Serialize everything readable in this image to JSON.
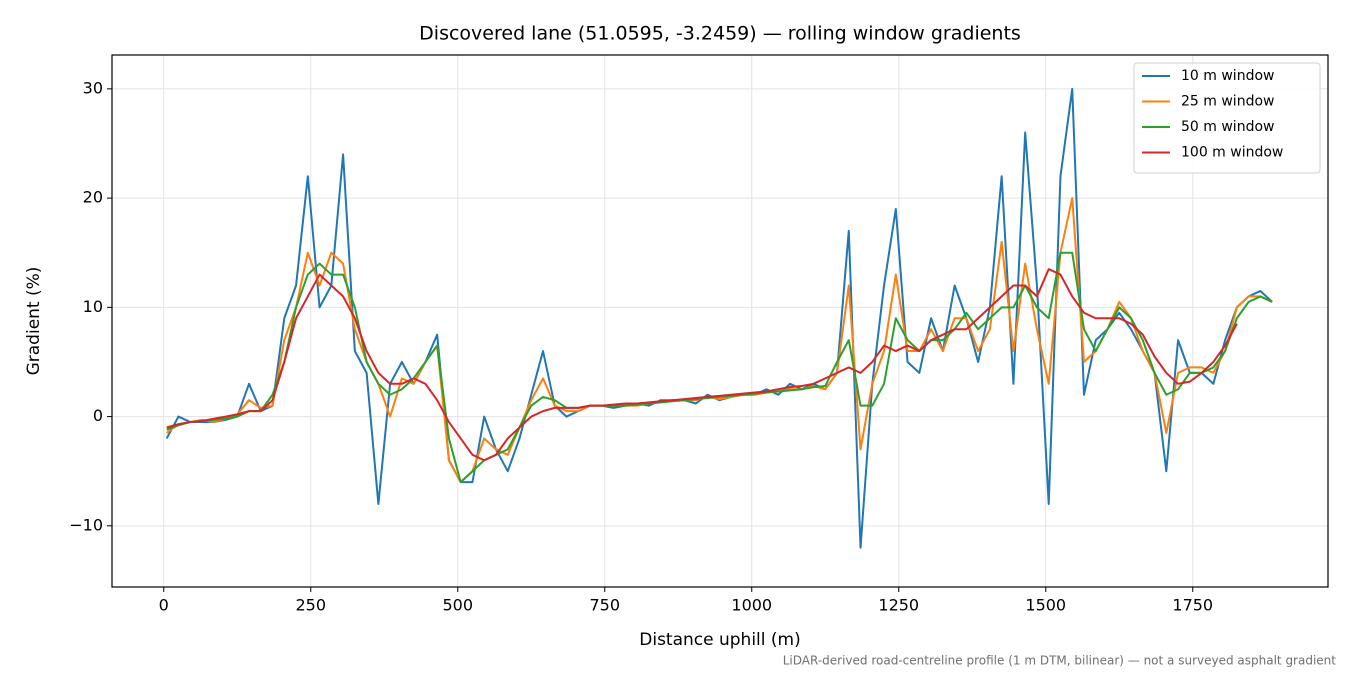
{
  "chart_data": {
    "type": "line",
    "title": "Discovered lane (51.0595, -3.2459) — rolling window gradients",
    "xlabel": "Distance uphill (m)",
    "ylabel": "Gradient (%)",
    "footnote": "LiDAR-derived road-centreline profile (1 m DTM, bilinear) — not a surveyed asphalt gradient",
    "x": [
      5,
      25,
      45,
      65,
      85,
      105,
      125,
      145,
      165,
      185,
      205,
      225,
      245,
      265,
      285,
      305,
      325,
      345,
      365,
      385,
      405,
      425,
      445,
      465,
      485,
      505,
      525,
      545,
      565,
      585,
      605,
      625,
      645,
      665,
      685,
      705,
      725,
      745,
      765,
      785,
      805,
      825,
      845,
      865,
      885,
      905,
      925,
      945,
      965,
      985,
      1005,
      1025,
      1045,
      1065,
      1085,
      1105,
      1125,
      1145,
      1165,
      1185,
      1205,
      1225,
      1245,
      1265,
      1285,
      1305,
      1325,
      1345,
      1365,
      1385,
      1405,
      1425,
      1445,
      1465,
      1485,
      1505,
      1525,
      1545,
      1565,
      1585,
      1605,
      1625,
      1645,
      1665,
      1685,
      1705,
      1725,
      1745,
      1765,
      1785,
      1805,
      1825,
      1845,
      1865,
      1885
    ],
    "series": [
      {
        "name": "10 m window",
        "color": "#1f77b4",
        "values": [
          -2,
          0,
          -0.5,
          -0.5,
          -0.5,
          -0.3,
          0,
          3,
          0.5,
          1,
          9,
          12,
          22,
          10,
          12,
          24,
          6,
          4,
          -8,
          3,
          5,
          3,
          5,
          7.5,
          -4,
          -6,
          -6,
          0,
          -3,
          -5,
          -2,
          2,
          6,
          1,
          0,
          0.5,
          1,
          1,
          0.8,
          1,
          1.2,
          1,
          1.5,
          1.5,
          1.5,
          1.2,
          2,
          1.5,
          1.8,
          2,
          2,
          2.5,
          2,
          3,
          2.5,
          3,
          2.5,
          4,
          17,
          -12,
          3,
          12,
          19,
          5,
          4,
          9,
          6,
          12,
          9,
          5,
          10,
          22,
          3,
          26,
          12,
          -8,
          22,
          30,
          2,
          7,
          8,
          9.5,
          8,
          6,
          4,
          -5,
          7,
          4,
          4,
          3,
          7,
          10,
          11,
          11.5,
          10.5
        ]
      },
      {
        "name": "25 m window",
        "color": "#ff7f0e",
        "values": [
          -1.5,
          -0.7,
          -0.5,
          -0.3,
          -0.5,
          -0.2,
          0.2,
          1.5,
          0.8,
          1,
          7,
          10,
          15,
          12,
          15,
          14,
          8,
          5,
          3,
          0,
          3.5,
          3,
          5,
          6.5,
          -4,
          -6,
          -5,
          -2,
          -3,
          -3.5,
          -1,
          1.5,
          3.5,
          1,
          0.5,
          0.5,
          1,
          1,
          1,
          1,
          1,
          1.2,
          1.3,
          1.5,
          1.5,
          1.5,
          1.8,
          1.6,
          1.8,
          2,
          2,
          2.2,
          2.3,
          2.5,
          2.5,
          2.8,
          2.5,
          4,
          12,
          -3,
          3,
          6,
          13,
          6,
          6,
          8,
          6,
          9,
          9,
          6,
          8,
          16,
          6,
          14,
          8,
          3,
          15,
          20,
          5,
          6,
          8,
          10.5,
          9,
          6,
          4,
          -1.5,
          4,
          4.5,
          4.5,
          4,
          6,
          10,
          11,
          11,
          10.5
        ]
      },
      {
        "name": "50 m window",
        "color": "#2ca02c",
        "values": [
          -1.2,
          -0.8,
          -0.5,
          -0.4,
          -0.3,
          -0.2,
          0,
          0.5,
          0.5,
          2,
          5,
          10,
          13,
          14,
          13,
          13,
          10,
          5,
          3,
          2,
          2.5,
          3.5,
          5,
          6.5,
          -2,
          -6,
          -5,
          -4,
          -3.5,
          -3,
          -1,
          1,
          1.8,
          1.5,
          0.8,
          0.8,
          1,
          1,
          1,
          1,
          1.1,
          1.2,
          1.3,
          1.4,
          1.5,
          1.6,
          1.7,
          1.8,
          1.9,
          2,
          2.1,
          2.2,
          2.3,
          2.4,
          2.5,
          2.7,
          2.8,
          5,
          7,
          1,
          1,
          3,
          9,
          7,
          6,
          7,
          7,
          8,
          9.5,
          8,
          9,
          10,
          10,
          12,
          10,
          9,
          15,
          15,
          8,
          6,
          8,
          10,
          9,
          7,
          4,
          2,
          2.5,
          4,
          4,
          4.5,
          6,
          9,
          10.5,
          11,
          10.5
        ]
      },
      {
        "name": "100 m window",
        "color": "#d62728",
        "values": [
          -1,
          -0.7,
          -0.5,
          -0.4,
          -0.2,
          0,
          0.2,
          0.5,
          0.5,
          1.5,
          5,
          9,
          11,
          13,
          12,
          11,
          9,
          6,
          4,
          3,
          3,
          3.5,
          3,
          1.5,
          -0.5,
          -2,
          -3.5,
          -4,
          -3.5,
          -2,
          -1,
          0,
          0.5,
          0.8,
          0.8,
          0.8,
          1,
          1,
          1.1,
          1.2,
          1.2,
          1.3,
          1.4,
          1.5,
          1.6,
          1.7,
          1.8,
          1.9,
          2,
          2.1,
          2.2,
          2.3,
          2.5,
          2.7,
          2.8,
          3,
          3.5,
          4,
          4.5,
          4,
          5,
          6.5,
          6,
          6.5,
          6,
          7,
          7.5,
          8,
          8,
          9,
          10,
          11,
          12,
          12,
          11,
          13.5,
          13,
          11,
          9.5,
          9,
          9,
          9,
          8.5,
          7.5,
          5.5,
          4,
          3,
          3.2,
          4,
          5,
          6.5,
          8.5,
          null,
          null,
          null
        ]
      }
    ],
    "xlim": [
      -88,
      1980
    ],
    "ylim": [
      -15.6,
      33.1
    ],
    "xticks": [
      0,
      250,
      500,
      750,
      1000,
      1250,
      1500,
      1750
    ],
    "yticks": [
      {
        "value": -10,
        "label": "−10"
      },
      0,
      10,
      20,
      30
    ],
    "grid": true,
    "legend": "upper right"
  }
}
